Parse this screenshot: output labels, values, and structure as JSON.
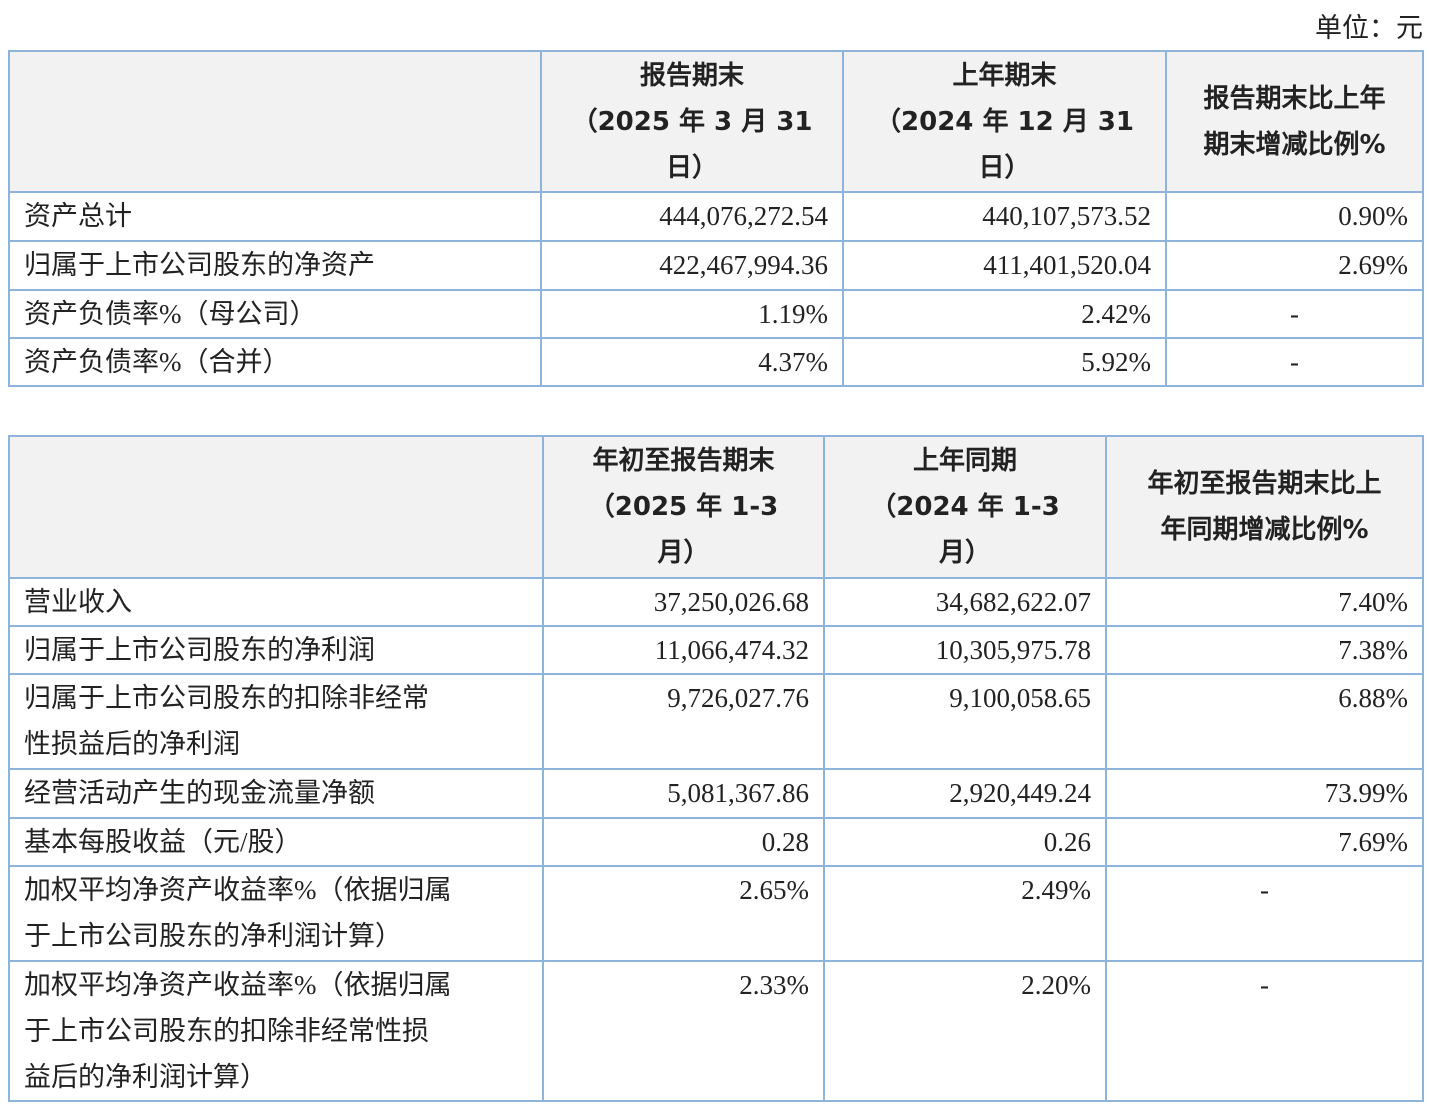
{
  "unit": "单位：元",
  "table1": {
    "header": [
      [
        "报告期末",
        "（2025 年 3 月 31",
        "日）"
      ],
      [
        "上年期末",
        "（2024 年 12 月 31",
        "日）"
      ],
      [
        "报告期末比上年",
        "期末增减比例%"
      ]
    ],
    "rows": [
      [
        "资产总计",
        "444,076,272.54",
        "440,107,573.52",
        "0.90%"
      ],
      [
        "归属于上市公司股东的净资产",
        "422,467,994.36",
        "411,401,520.04",
        "2.69%"
      ],
      [
        "资产负债率%（母公司）",
        "1.19%",
        "2.42%",
        "-"
      ],
      [
        "资产负债率%（合并）",
        "4.37%",
        "5.92%",
        "-"
      ]
    ]
  },
  "table2": {
    "header": [
      [
        "年初至报告期末",
        "（2025 年 1-3",
        "月）"
      ],
      [
        "上年同期",
        "（2024 年 1-3",
        "月）"
      ],
      [
        "年初至报告期末比上",
        "年同期增减比例%"
      ]
    ],
    "rows": [
      [
        "营业收入",
        "37,250,026.68",
        "34,682,622.07",
        "7.40%"
      ],
      [
        "归属于上市公司股东的净利润",
        "11,066,474.32",
        "10,305,975.78",
        "7.38%"
      ],
      [
        [
          "归属于上市公司股东的扣除非经常",
          "性损益后的净利润"
        ],
        "9,726,027.76",
        "9,100,058.65",
        "6.88%"
      ],
      [
        "经营活动产生的现金流量净额",
        "5,081,367.86",
        "2,920,449.24",
        "73.99%"
      ],
      [
        "基本每股收益（元/股）",
        "0.28",
        "0.26",
        "7.69%"
      ],
      [
        [
          "加权平均净资产收益率%（依据归属",
          "于上市公司股东的净利润计算）"
        ],
        "2.65%",
        "2.49%",
        "-"
      ],
      [
        [
          "加权平均净资产收益率%（依据归属",
          "于上市公司股东的扣除非经常性损",
          "益后的净利润计算）"
        ],
        "2.33%",
        "2.20%",
        "-"
      ]
    ]
  }
}
